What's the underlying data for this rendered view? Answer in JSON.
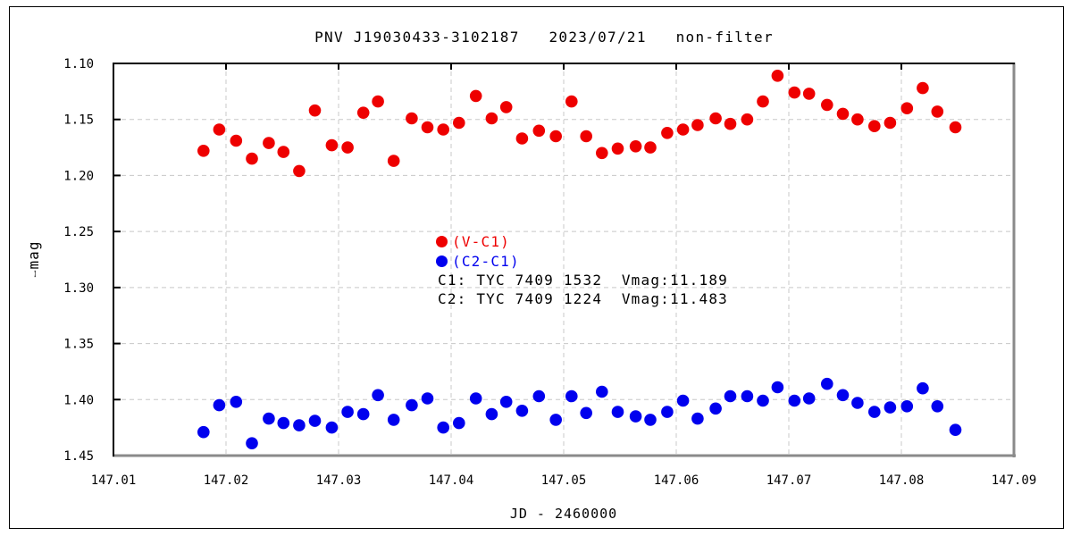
{
  "chart_data": {
    "type": "scatter",
    "title": "PNV J19030433-3102187   2023/07/21   non-filter",
    "xlabel": "JD - 2460000",
    "ylabel": "⧿mag",
    "xlim": [
      147.01,
      147.09
    ],
    "ylim": [
      1.1,
      1.45
    ],
    "y_inverted_magnitude_axis": true,
    "grid": true,
    "x_ticks": [
      147.01,
      147.02,
      147.03,
      147.04,
      147.05,
      147.06,
      147.07,
      147.08,
      147.09
    ],
    "y_ticks": [
      1.1,
      1.15,
      1.2,
      1.25,
      1.3,
      1.35,
      1.4,
      1.45
    ],
    "legend_position": "center",
    "annotations": [
      "C1: TYC 7409 1532  Vmag:11.189",
      "C2: TYC 7409 1224  Vmag:11.483"
    ],
    "series": [
      {
        "name": "(V-C1)",
        "color": "#ee0000",
        "x": [
          147.018,
          147.0194,
          147.0209,
          147.0223,
          147.0238,
          147.0251,
          147.0265,
          147.0279,
          147.0294,
          147.0308,
          147.0322,
          147.0335,
          147.0349,
          147.0365,
          147.0379,
          147.0393,
          147.0407,
          147.0422,
          147.0436,
          147.0449,
          147.0463,
          147.0478,
          147.0493,
          147.0507,
          147.052,
          147.0534,
          147.0548,
          147.0564,
          147.0577,
          147.0592,
          147.0606,
          147.0619,
          147.0635,
          147.0648,
          147.0663,
          147.0677,
          147.069,
          147.0705,
          147.0718,
          147.0734,
          147.0748,
          147.0761,
          147.0776,
          147.079,
          147.0805,
          147.0819,
          147.0832,
          147.0848
        ],
        "y": [
          1.178,
          1.159,
          1.169,
          1.185,
          1.171,
          1.179,
          1.196,
          1.142,
          1.173,
          1.175,
          1.144,
          1.134,
          1.187,
          1.149,
          1.157,
          1.159,
          1.153,
          1.129,
          1.149,
          1.139,
          1.167,
          1.16,
          1.165,
          1.134,
          1.165,
          1.18,
          1.176,
          1.174,
          1.175,
          1.162,
          1.159,
          1.155,
          1.149,
          1.154,
          1.15,
          1.134,
          1.111,
          1.126,
          1.127,
          1.137,
          1.145,
          1.15,
          1.156,
          1.153,
          1.14,
          1.122,
          1.143,
          1.157
        ]
      },
      {
        "name": "(C2-C1)",
        "color": "#0000ee",
        "x": [
          147.018,
          147.0194,
          147.0209,
          147.0223,
          147.0238,
          147.0251,
          147.0265,
          147.0279,
          147.0294,
          147.0308,
          147.0322,
          147.0335,
          147.0349,
          147.0365,
          147.0379,
          147.0393,
          147.0407,
          147.0422,
          147.0436,
          147.0449,
          147.0463,
          147.0478,
          147.0493,
          147.0507,
          147.052,
          147.0534,
          147.0548,
          147.0564,
          147.0577,
          147.0592,
          147.0606,
          147.0619,
          147.0635,
          147.0648,
          147.0663,
          147.0677,
          147.069,
          147.0705,
          147.0718,
          147.0734,
          147.0748,
          147.0761,
          147.0776,
          147.079,
          147.0805,
          147.0819,
          147.0832,
          147.0848
        ],
        "y": [
          1.429,
          1.405,
          1.402,
          1.439,
          1.417,
          1.421,
          1.423,
          1.419,
          1.425,
          1.411,
          1.413,
          1.396,
          1.418,
          1.405,
          1.399,
          1.425,
          1.421,
          1.399,
          1.413,
          1.402,
          1.41,
          1.397,
          1.418,
          1.397,
          1.412,
          1.393,
          1.411,
          1.415,
          1.418,
          1.411,
          1.401,
          1.417,
          1.408,
          1.397,
          1.397,
          1.401,
          1.389,
          1.401,
          1.399,
          1.386,
          1.396,
          1.403,
          1.411,
          1.407,
          1.406,
          1.39,
          1.406,
          1.427
        ]
      }
    ]
  }
}
